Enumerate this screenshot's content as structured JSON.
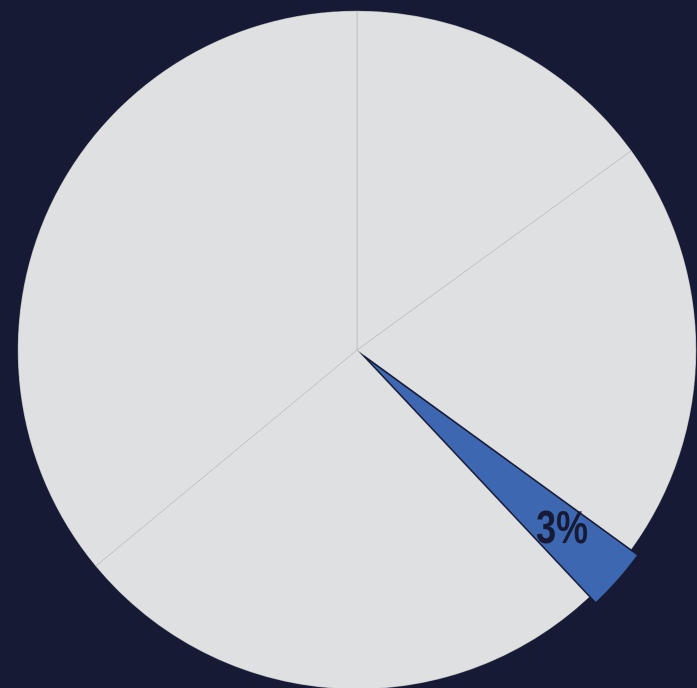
{
  "chart_data": {
    "type": "pie",
    "values": [
      15,
      20,
      3,
      26,
      36
    ],
    "value_labels": [
      null,
      null,
      "3%",
      null,
      null
    ],
    "colors": [
      "#dfe0e2",
      "#dfe0e2",
      "#3d67b1",
      "#dfe0e2",
      "#dfe0e2"
    ]
  }
}
